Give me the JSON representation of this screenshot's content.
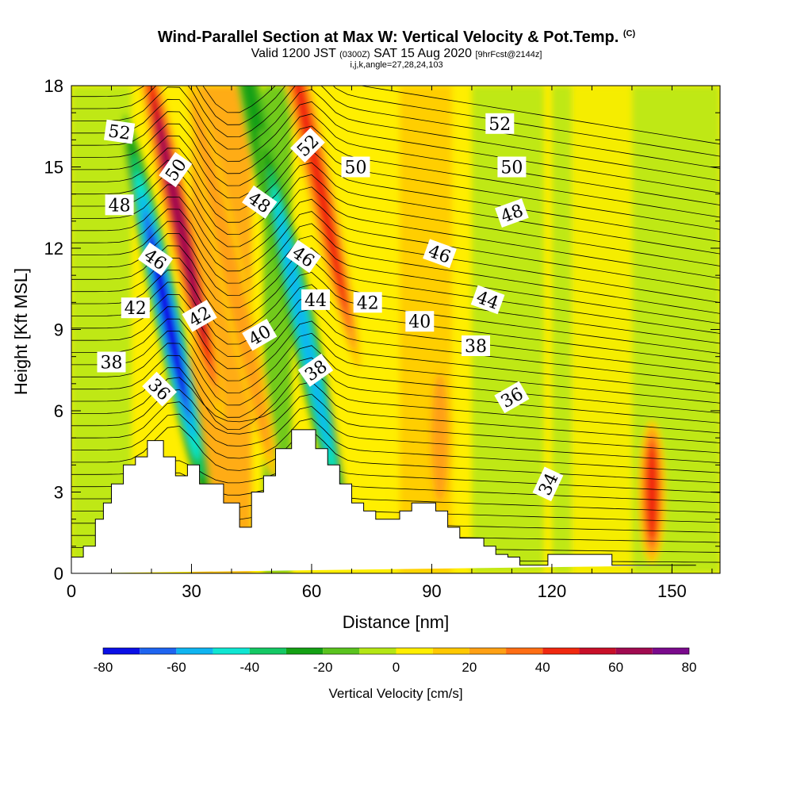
{
  "title": "Wind-Parallel Section at Max W: Vertical Velocity & Pot.Temp.",
  "copyright_mark": "(C)",
  "subtitle": {
    "valid_prefix": "Valid 1200 JST",
    "utc": "(0300Z)",
    "date": "SAT 15 Aug 2020",
    "fcst": "[9hrFcst@2144z]"
  },
  "ijk_line": "i,j,k,angle=27,28,24,103",
  "chart_data": {
    "type": "heatmap",
    "xlabel": "Distance [nm]",
    "ylabel": "Height [Kft MSL]",
    "xlim": [
      0,
      162
    ],
    "ylim": [
      0,
      18
    ],
    "x_ticks": [
      "0",
      "30",
      "60",
      "90",
      "120",
      "150"
    ],
    "y_ticks": [
      "0",
      "3",
      "6",
      "9",
      "12",
      "15",
      "18"
    ],
    "colorbar": {
      "label": "Vertical Velocity [cm/s]",
      "tick_labels": [
        "-80",
        "-60",
        "-40",
        "-20",
        "0",
        "20",
        "40",
        "60",
        "80"
      ],
      "levels": [
        -80,
        -70,
        -60,
        -50,
        -40,
        -30,
        -20,
        -10,
        0,
        10,
        20,
        30,
        40,
        50,
        60,
        70,
        80
      ],
      "colors": [
        "#0a0fe6",
        "#1e64f0",
        "#0fb4f0",
        "#0fe6d2",
        "#14c864",
        "#14a014",
        "#5ac31e",
        "#b4e614",
        "#ffee00",
        "#ffc800",
        "#ffa014",
        "#ff6e14",
        "#f0280f",
        "#c80f28",
        "#a00a50",
        "#7a0a8c"
      ]
    },
    "terrain_profile": {
      "x": [
        0,
        3,
        3,
        6,
        6,
        8,
        8,
        10,
        10,
        13,
        13,
        16,
        16,
        19,
        19,
        23,
        23,
        26,
        26,
        29,
        29,
        32,
        32,
        38,
        38,
        42,
        42,
        45,
        45,
        48,
        48,
        51,
        51,
        55,
        55,
        61,
        61,
        64,
        64,
        67,
        67,
        70,
        70,
        73,
        73,
        76,
        76,
        82,
        82,
        85,
        85,
        91,
        91,
        94,
        94,
        97,
        97,
        103,
        103,
        106,
        106,
        109,
        109,
        112,
        112,
        115,
        115,
        119,
        119,
        135,
        135,
        141,
        141,
        156,
        156,
        161
      ],
      "y": [
        0.6,
        0.6,
        1.0,
        1.0,
        2.0,
        2.0,
        2.6,
        2.6,
        3.3,
        3.3,
        4.0,
        4.0,
        4.3,
        4.3,
        4.9,
        4.9,
        4.3,
        4.3,
        3.6,
        3.6,
        4.0,
        4.0,
        3.3,
        3.3,
        2.6,
        2.6,
        1.7,
        1.7,
        3.0,
        3.0,
        3.6,
        3.6,
        4.6,
        4.6,
        5.3,
        5.3,
        4.6,
        4.6,
        4.0,
        4.0,
        3.3,
        3.3,
        2.6,
        2.6,
        2.3,
        2.3,
        2.0,
        2.0,
        2.3,
        2.3,
        2.6,
        2.6,
        2.3,
        2.3,
        1.7,
        1.7,
        1.3,
        1.3,
        1.0,
        1.0,
        0.7,
        0.7,
        0.6,
        0.6,
        0.3,
        0.3,
        0.3,
        0.3,
        0.7,
        0.7,
        0.3,
        0.3,
        0.3,
        0.3
      ]
    },
    "vertical_velocity_features": [
      {
        "x": 24,
        "y_center": 9.5,
        "value": -80
      },
      {
        "x": 27,
        "y_center": 13,
        "value": 60
      },
      {
        "x": 40,
        "y_center": 11,
        "value": 20
      },
      {
        "x": 50,
        "y_center": 14,
        "value": -20
      },
      {
        "x": 58,
        "y_center": 9,
        "value": -50
      },
      {
        "x": 61,
        "y_center": 15,
        "value": 40
      },
      {
        "x": 92,
        "y_center": 5,
        "value": 20
      },
      {
        "x": 145,
        "y_center": 3,
        "value": 40
      }
    ],
    "contour_labels": [
      {
        "x": 12,
        "y": 16.3,
        "text": "52",
        "angle": 8
      },
      {
        "x": 26,
        "y": 14.9,
        "text": "50",
        "angle": -55
      },
      {
        "x": 12,
        "y": 13.6,
        "text": "48",
        "angle": 0
      },
      {
        "x": 21,
        "y": 11.6,
        "text": "46",
        "angle": 35
      },
      {
        "x": 16,
        "y": 9.8,
        "text": "42",
        "angle": 0
      },
      {
        "x": 32,
        "y": 9.5,
        "text": "42",
        "angle": -30
      },
      {
        "x": 10,
        "y": 7.8,
        "text": "38",
        "angle": 0
      },
      {
        "x": 22,
        "y": 6.8,
        "text": "36",
        "angle": 45
      },
      {
        "x": 47,
        "y": 13.7,
        "text": "48",
        "angle": 35
      },
      {
        "x": 58,
        "y": 11.7,
        "text": "46",
        "angle": 35
      },
      {
        "x": 47,
        "y": 8.8,
        "text": "40",
        "angle": -30
      },
      {
        "x": 59,
        "y": 15.8,
        "text": "52",
        "angle": -45
      },
      {
        "x": 61,
        "y": 10.1,
        "text": "44",
        "angle": 0
      },
      {
        "x": 61,
        "y": 7.5,
        "text": "38",
        "angle": -35
      },
      {
        "x": 71,
        "y": 15.0,
        "text": "50",
        "angle": 0
      },
      {
        "x": 74,
        "y": 10.0,
        "text": "42",
        "angle": 0
      },
      {
        "x": 87,
        "y": 9.3,
        "text": "40",
        "angle": 0
      },
      {
        "x": 92,
        "y": 11.8,
        "text": "46",
        "angle": 20
      },
      {
        "x": 101,
        "y": 8.4,
        "text": "38",
        "angle": 0
      },
      {
        "x": 104,
        "y": 10.1,
        "text": "44",
        "angle": 20
      },
      {
        "x": 107,
        "y": 16.6,
        "text": "52",
        "angle": 0
      },
      {
        "x": 110,
        "y": 15.0,
        "text": "50",
        "angle": 0
      },
      {
        "x": 110,
        "y": 13.3,
        "text": "48",
        "angle": -20
      },
      {
        "x": 110,
        "y": 6.5,
        "text": "36",
        "angle": -30
      },
      {
        "x": 119,
        "y": 3.3,
        "text": "34",
        "angle": -65
      }
    ]
  }
}
